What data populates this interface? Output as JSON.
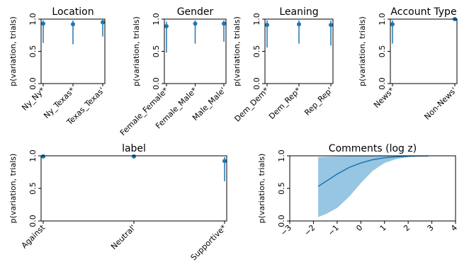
{
  "colors": {
    "series": "#1f77b4",
    "band": "#6baed6"
  },
  "chart_data": [
    {
      "type": "scatter",
      "title": "Location",
      "ylabel": "p(variation, trials)",
      "ylim": [
        0,
        1.0
      ],
      "yticks": [
        "0.0",
        "0.5",
        "1.0"
      ],
      "categories": [
        "Ny_Ny*",
        "Ny_Texas*",
        "Texas_Texas'"
      ],
      "values": [
        0.93,
        0.92,
        0.95
      ],
      "error_low": [
        0.63,
        0.61,
        0.73
      ],
      "error_high": [
        0.98,
        0.98,
        0.99
      ]
    },
    {
      "type": "scatter",
      "title": "Gender",
      "ylabel": "p(variation, trials)",
      "ylim": [
        0,
        1.0
      ],
      "yticks": [
        "0.0",
        "0.5",
        "1.0"
      ],
      "categories": [
        "Female_Female*",
        "Female_Male*",
        "Male_Male'"
      ],
      "values": [
        0.89,
        0.93,
        0.93
      ],
      "error_low": [
        0.48,
        0.62,
        0.65
      ],
      "error_high": [
        0.96,
        0.98,
        0.98
      ]
    },
    {
      "type": "scatter",
      "title": "Leaning",
      "ylabel": "p(variation, trials)",
      "ylim": [
        0,
        1.0
      ],
      "yticks": [
        "0.0",
        "0.5",
        "1.0"
      ],
      "categories": [
        "Dem_Dem*",
        "Dem_Rep*",
        "Rep_Rep'"
      ],
      "values": [
        0.91,
        0.92,
        0.91
      ],
      "error_low": [
        0.56,
        0.62,
        0.59
      ],
      "error_high": [
        0.98,
        0.98,
        0.98
      ]
    },
    {
      "type": "scatter",
      "title": "Account Type",
      "ylabel": "p(variation, trials)",
      "ylim": [
        0,
        1.0
      ],
      "yticks": [
        "0.0",
        "0.5",
        "1.0"
      ],
      "categories": [
        "News*",
        "Non-News'"
      ],
      "values": [
        0.92,
        1.0
      ],
      "error_low": [
        0.62,
        0.99
      ],
      "error_high": [
        0.98,
        1.0
      ]
    },
    {
      "type": "scatter",
      "title": "label",
      "ylabel": "p(variation, trials)",
      "ylim": [
        0,
        1.0
      ],
      "yticks": [
        "0.0",
        "0.5",
        "1.0"
      ],
      "categories": [
        "Against",
        "Neutral'",
        "Supportive*"
      ],
      "values": [
        0.99,
        0.99,
        0.92
      ],
      "error_low": [
        0.96,
        0.97,
        0.61
      ],
      "error_high": [
        1.0,
        1.0,
        0.98
      ]
    },
    {
      "type": "area",
      "title": "Comments (log z)",
      "ylabel": "p(variation, trials)",
      "ylim": [
        0,
        1.0
      ],
      "xlim": [
        -3,
        4
      ],
      "yticks": [
        "0.0",
        "0.5",
        "1.0"
      ],
      "xticks": [
        "−3",
        "−2",
        "−1",
        "0",
        "1",
        "2",
        "3",
        "4"
      ],
      "x": [
        -1.8,
        -1.5,
        -1.0,
        -0.5,
        0.0,
        0.5,
        1.0,
        1.5,
        2.0,
        2.5,
        2.85
      ],
      "y": [
        0.53,
        0.6,
        0.72,
        0.82,
        0.89,
        0.94,
        0.97,
        0.985,
        0.993,
        0.997,
        0.998
      ],
      "lower": [
        0.06,
        0.1,
        0.2,
        0.37,
        0.58,
        0.77,
        0.89,
        0.95,
        0.98,
        0.995,
        0.998
      ],
      "upper": [
        0.98,
        0.985,
        0.99,
        0.995,
        0.997,
        0.998,
        0.999,
        0.999,
        0.999,
        0.999,
        0.999
      ]
    }
  ]
}
